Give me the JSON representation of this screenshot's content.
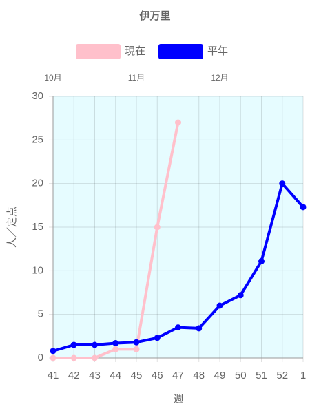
{
  "chart_data": {
    "type": "line",
    "title": "伊万里",
    "x_label": "週",
    "y_label": "人／定点",
    "categories": [
      "41",
      "42",
      "43",
      "44",
      "45",
      "46",
      "47",
      "48",
      "49",
      "50",
      "51",
      "52",
      "1"
    ],
    "top_categories": [
      "10月",
      null,
      null,
      null,
      "11月",
      null,
      null,
      null,
      "12月",
      null,
      null,
      null,
      null
    ],
    "series": [
      {
        "name": "現在",
        "color": "#ffc0cb",
        "values": [
          0,
          0,
          0,
          1,
          1,
          15,
          27,
          null,
          null,
          null,
          null,
          null,
          null
        ]
      },
      {
        "name": "平年",
        "color": "#0000ff",
        "values": [
          0.8,
          1.5,
          1.5,
          1.7,
          1.8,
          2.3,
          3.5,
          3.4,
          6,
          7.2,
          11.1,
          20,
          17.3
        ]
      }
    ],
    "ylim": [
      0,
      30
    ],
    "yticks": [
      0,
      5,
      10,
      15,
      20,
      25,
      30
    ],
    "grid": true,
    "background": "#e6fcff"
  }
}
